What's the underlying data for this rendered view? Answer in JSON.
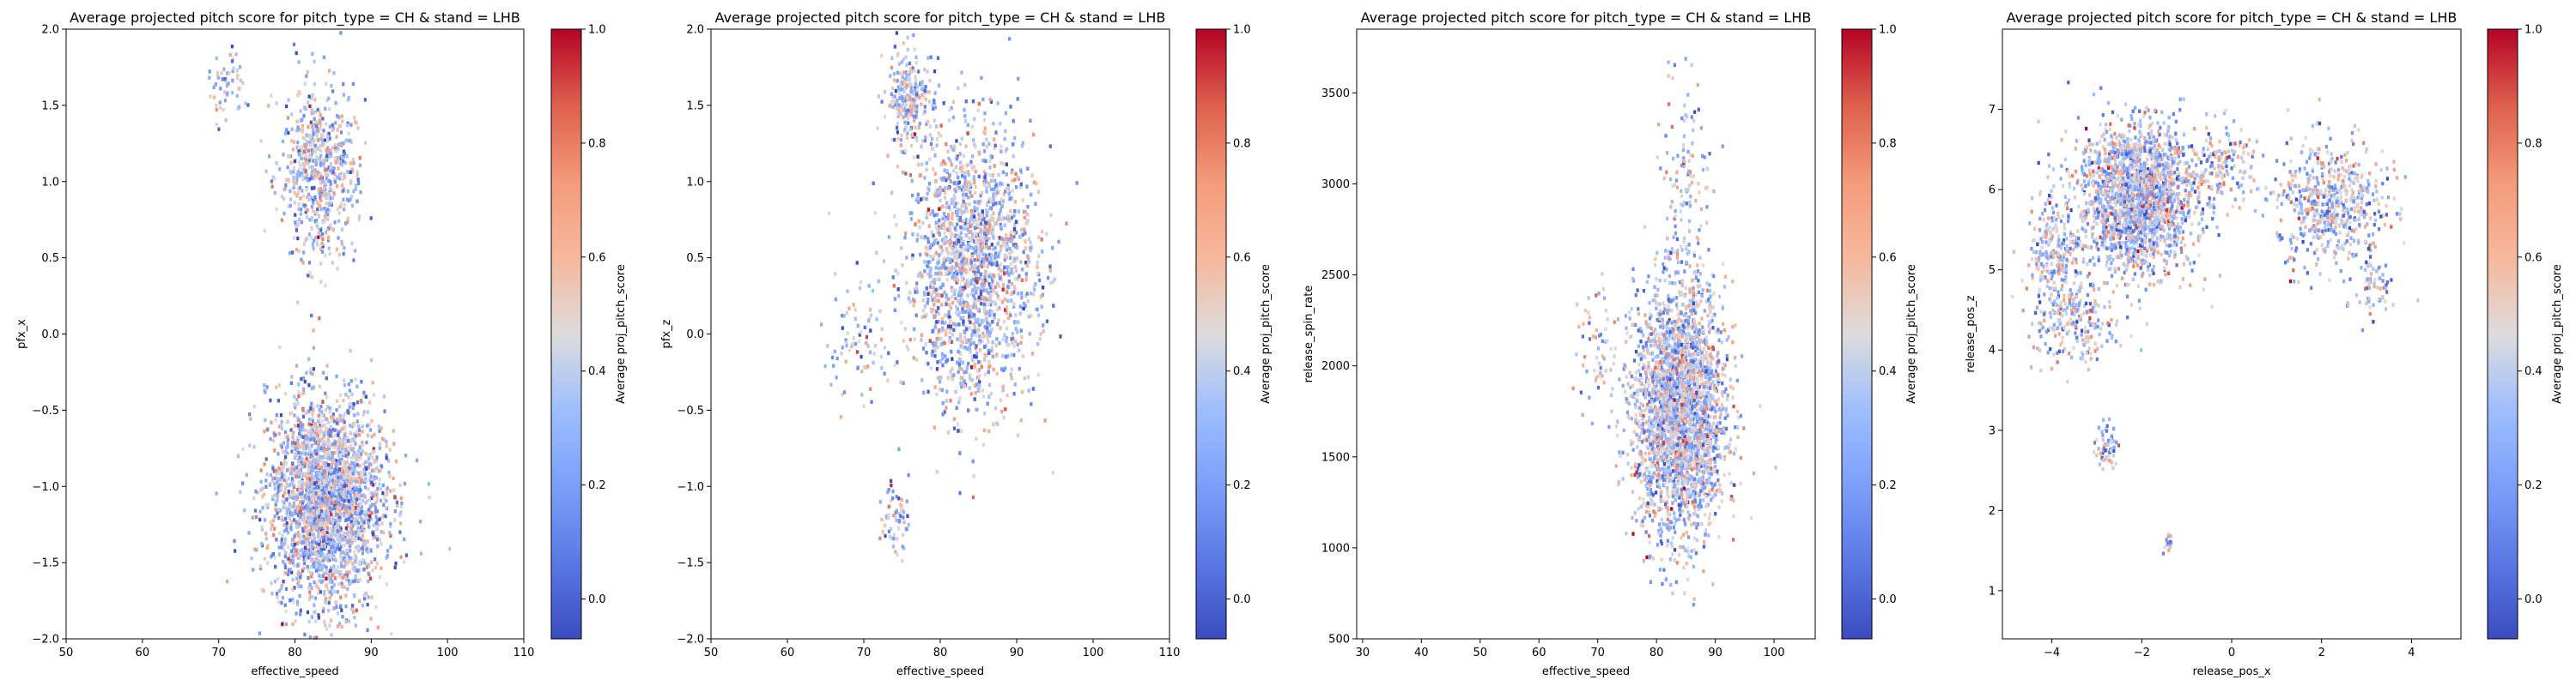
{
  "chart_data": [
    {
      "type": "hexbin",
      "title": "Average projected pitch score for pitch_type = CH & stand = LHB",
      "xlabel": "effective_speed",
      "ylabel": "pfx_x",
      "xlim": [
        50,
        110
      ],
      "ylim": [
        -2.0,
        2.0
      ],
      "xticks": [
        "50",
        "60",
        "70",
        "80",
        "90",
        "100",
        "110"
      ],
      "yticks": [
        "−2.0",
        "−1.5",
        "−1.0",
        "−0.5",
        "0.0",
        "0.5",
        "1.0",
        "1.5",
        "2.0"
      ],
      "colorbar": {
        "label": "Average proj_pitch_score",
        "ticks": [
          "0.0",
          "0.2",
          "0.4",
          "0.6",
          "0.8",
          "1.0"
        ]
      },
      "clusters": [
        {
          "center": [
            84,
            -1.1
          ],
          "spread": [
            3.8,
            0.34
          ],
          "count": 2600
        },
        {
          "center": [
            83,
            1.05
          ],
          "spread": [
            2.5,
            0.28
          ],
          "count": 650
        },
        {
          "center": [
            71,
            1.6
          ],
          "spread": [
            1.2,
            0.12
          ],
          "count": 60
        }
      ]
    },
    {
      "type": "hexbin",
      "title": "Average projected pitch score for pitch_type = CH & stand = LHB",
      "xlabel": "effective_speed",
      "ylabel": "pfx_z",
      "xlim": [
        50,
        110
      ],
      "ylim": [
        -2.0,
        2.0
      ],
      "xticks": [
        "50",
        "60",
        "70",
        "80",
        "90",
        "100",
        "110"
      ],
      "yticks": [
        "−2.0",
        "−1.5",
        "−1.0",
        "−0.5",
        "0.0",
        "0.5",
        "1.0",
        "1.5",
        "2.0"
      ],
      "colorbar": {
        "label": "Average proj_pitch_score",
        "ticks": [
          "0.0",
          "0.2",
          "0.4",
          "0.6",
          "0.8",
          "1.0"
        ]
      },
      "clusters": [
        {
          "center": [
            84,
            0.45
          ],
          "spread": [
            4.2,
            0.45
          ],
          "count": 3000
        },
        {
          "center": [
            76,
            1.55
          ],
          "spread": [
            1.5,
            0.15
          ],
          "count": 250
        },
        {
          "center": [
            74,
            -1.2
          ],
          "spread": [
            1.0,
            0.13
          ],
          "count": 60
        },
        {
          "center": [
            69,
            -0.1
          ],
          "spread": [
            1.8,
            0.25
          ],
          "count": 80
        }
      ]
    },
    {
      "type": "hexbin",
      "title": "Average projected pitch score for pitch_type = CH & stand = LHB",
      "xlabel": "effective_speed",
      "ylabel": "release_spin_rate",
      "xlim": [
        29,
        107
      ],
      "ylim": [
        500,
        3850
      ],
      "xticks": [
        "30",
        "40",
        "50",
        "60",
        "70",
        "80",
        "90",
        "100"
      ],
      "yticks": [
        "500",
        "1000",
        "1500",
        "2000",
        "2500",
        "3000",
        "3500"
      ],
      "colorbar": {
        "label": "Average proj_pitch_score",
        "ticks": [
          "0.0",
          "0.2",
          "0.4",
          "0.6",
          "0.8",
          "1.0"
        ]
      },
      "clusters": [
        {
          "center": [
            84,
            1750
          ],
          "spread": [
            3.8,
            340
          ],
          "count": 2800
        },
        {
          "center": [
            85,
            3050
          ],
          "spread": [
            2.0,
            320
          ],
          "count": 120
        },
        {
          "center": [
            70,
            2100
          ],
          "spread": [
            2.0,
            200
          ],
          "count": 60
        }
      ]
    },
    {
      "type": "hexbin",
      "title": "Average projected pitch score for pitch_type = CH & stand = LHB",
      "xlabel": "release_pos_x",
      "ylabel": "release_pos_z",
      "xlim": [
        -5.1,
        5.1
      ],
      "ylim": [
        0.4,
        8.0
      ],
      "xticks": [
        "−4",
        "−2",
        "0",
        "2",
        "4"
      ],
      "yticks": [
        "1",
        "2",
        "3",
        "4",
        "5",
        "6",
        "7"
      ],
      "colorbar": {
        "label": "Average proj_pitch_score",
        "ticks": [
          "0.0",
          "0.2",
          "0.4",
          "0.6",
          "0.8",
          "1.0"
        ]
      },
      "clusters": [
        {
          "center": [
            -2.1,
            5.9
          ],
          "spread": [
            0.65,
            0.45
          ],
          "count": 1900
        },
        {
          "center": [
            -3.9,
            5.2
          ],
          "spread": [
            0.35,
            0.4
          ],
          "count": 250
        },
        {
          "center": [
            -3.5,
            4.3
          ],
          "spread": [
            0.45,
            0.3
          ],
          "count": 200
        },
        {
          "center": [
            -2.8,
            2.8
          ],
          "spread": [
            0.12,
            0.15
          ],
          "count": 60
        },
        {
          "center": [
            -1.4,
            1.6
          ],
          "spread": [
            0.08,
            0.07
          ],
          "count": 15
        },
        {
          "center": [
            2.2,
            5.8
          ],
          "spread": [
            0.6,
            0.4
          ],
          "count": 550
        },
        {
          "center": [
            3.2,
            4.8
          ],
          "spread": [
            0.22,
            0.2
          ],
          "count": 60
        },
        {
          "center": [
            -0.2,
            6.3
          ],
          "spread": [
            0.35,
            0.25
          ],
          "count": 150
        }
      ]
    }
  ]
}
